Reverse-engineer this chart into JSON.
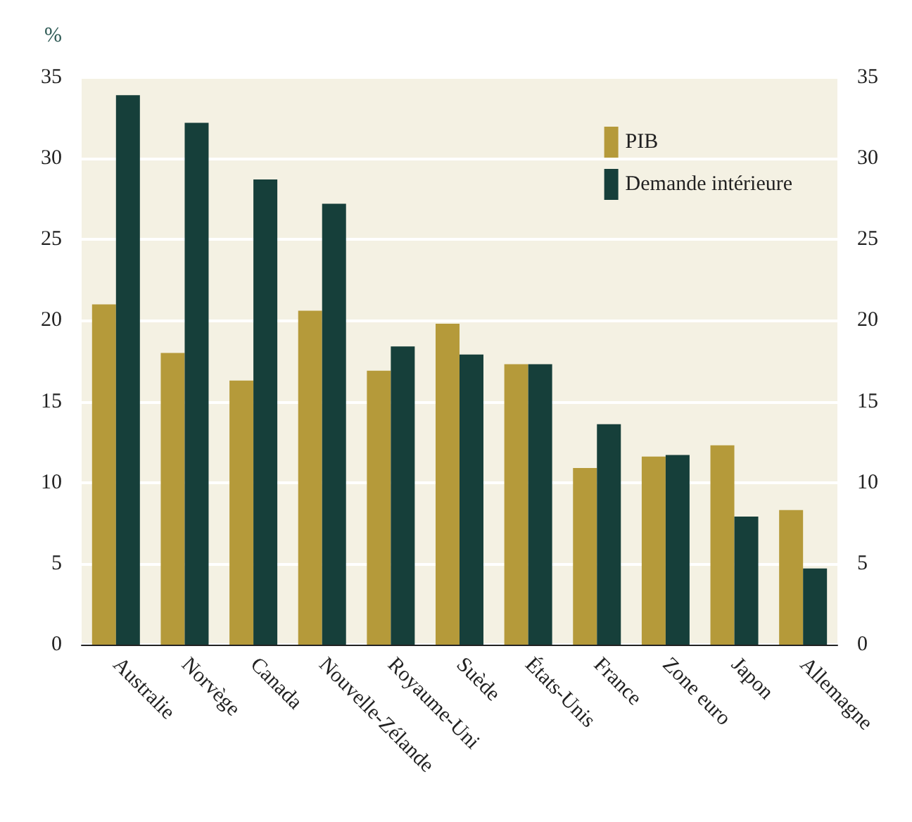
{
  "chart_data": {
    "type": "bar",
    "ylabel": "%",
    "categories": [
      "Australie",
      "Norvège",
      "Canada",
      "Nouvelle-Zélande",
      "Royaume-Uni",
      "Suède",
      "États-Unis",
      "France",
      "Zone euro",
      "Japon",
      "Allemagne"
    ],
    "series": [
      {
        "name": "PIB",
        "color": "#b59a3a",
        "values": [
          21.0,
          18.0,
          16.3,
          20.6,
          16.9,
          19.8,
          17.3,
          10.9,
          11.6,
          12.3,
          8.3
        ]
      },
      {
        "name": "Demande intérieure",
        "color": "#163f3a",
        "values": [
          33.9,
          32.2,
          28.7,
          27.2,
          18.4,
          17.9,
          17.3,
          13.6,
          11.7,
          7.9,
          4.7
        ]
      }
    ],
    "ylim": [
      0,
      35
    ],
    "yticks": [
      0,
      5,
      10,
      15,
      20,
      25,
      30,
      35
    ],
    "y2lim": [
      0,
      35
    ],
    "y2ticks": [
      0,
      5,
      10,
      15,
      20,
      25,
      30,
      35
    ],
    "grid": "y",
    "legend": "top right"
  }
}
